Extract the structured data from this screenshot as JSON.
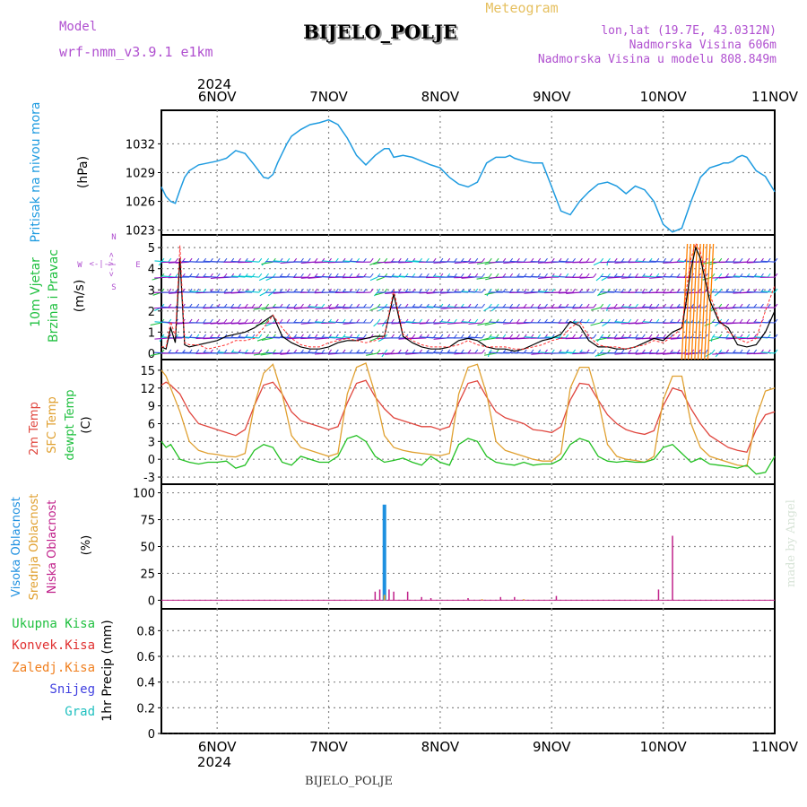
{
  "header": {
    "model_label": "Model",
    "model_name": "wrf-nmm_v3.9.1 e1km",
    "title": "BIJELO_POLJE",
    "subtitle": "Meteogram",
    "lonlat": "lon,lat (19.7E, 43.0312N)",
    "altitude": "Nadmorska Visina 606m",
    "model_altitude": "Nadmorska Visina u modelu 808.849m",
    "watermark": "made by Angel",
    "footer": "BIJELO_POLJE"
  },
  "colors": {
    "pressure": "#1e9be0",
    "temp2m": "#e0473f",
    "sfc": "#e0a030",
    "dew": "#22c022",
    "high_cloud": "#1e90e0",
    "mid_cloud": "#e0a030",
    "low_cloud": "#c0208a",
    "wind_speed": "#000000",
    "gust": "#ff3030",
    "barb_colors": [
      "#9010c0",
      "#3050e0",
      "#00c8d0",
      "#20c040",
      "#ff8000"
    ],
    "legend_total": "#20c040",
    "legend_conv": "#e03030",
    "legend_frozen": "#f08020",
    "legend_snow": "#4040e0",
    "legend_graupel": "#20c0c0",
    "purple_text": "#b050d0"
  },
  "time_axis": {
    "year": "2024",
    "days": [
      "6NOV",
      "7NOV",
      "8NOV",
      "9NOV",
      "10NOV",
      "11NOV"
    ],
    "start_hour": 12,
    "end_hour": 144
  },
  "panels": {
    "pressure": {
      "labels": [
        "Pritisak na nivou mora",
        "(hPa)"
      ],
      "ticks": [
        "1023",
        "1026",
        "1029",
        "1032"
      ]
    },
    "wind": {
      "labels": [
        "10m Vjetar",
        "Brzina i Pravac",
        "(m/s)"
      ],
      "ticks": [
        "0",
        "1",
        "2",
        "3",
        "4",
        "5"
      ],
      "compass": {
        "n": "N",
        "s": "S",
        "w": "W",
        "e": "E",
        "arrow_n": "<-|->",
        "arrow_s": "<-|->"
      }
    },
    "temp": {
      "labels": [
        "2m Temp",
        "SFC Temp",
        "dewpt Temp",
        "(C)"
      ],
      "ticks": [
        "-3",
        "0",
        "3",
        "6",
        "9",
        "12",
        "15"
      ]
    },
    "cloud": {
      "labels": [
        "Visoka Oblacnost",
        "Srednja Oblacnost",
        "Niska Oblacnost",
        "(%)"
      ],
      "ticks": [
        "0",
        "25",
        "50",
        "75",
        "100"
      ]
    },
    "precip": {
      "legend": [
        "Ukupna Kisa",
        "Konvek.Kisa",
        "Zaledj.Kisa",
        "Snijeg",
        "Grad"
      ],
      "ylabel": "1hr Precip (mm)",
      "ticks": [
        "0",
        "0.2",
        "0.4",
        "0.6",
        "0.8"
      ]
    }
  },
  "chart_data": [
    {
      "type": "line",
      "name": "pressure",
      "x_hours": [
        12,
        13,
        14,
        15,
        16,
        17,
        18,
        20,
        22,
        24,
        26,
        28,
        30,
        32,
        34,
        35,
        36,
        37,
        38,
        39,
        40,
        42,
        44,
        46,
        48,
        50,
        52,
        54,
        56,
        58,
        60,
        61,
        62,
        64,
        66,
        68,
        70,
        72,
        74,
        76,
        78,
        80,
        82,
        84,
        86,
        87,
        88,
        90,
        92,
        94,
        96,
        98,
        100,
        102,
        104,
        106,
        108,
        110,
        112,
        114,
        116,
        118,
        120,
        122,
        124,
        126,
        128,
        130,
        132,
        133,
        134,
        135,
        136,
        137,
        138,
        140,
        142,
        144
      ],
      "values": [
        1027.5,
        1026.5,
        1026.0,
        1025.8,
        1027.2,
        1028.5,
        1029.2,
        1029.8,
        1030.0,
        1030.2,
        1030.5,
        1031.3,
        1031.0,
        1029.8,
        1028.5,
        1028.4,
        1028.8,
        1030.0,
        1031.0,
        1032.0,
        1032.8,
        1033.5,
        1034.0,
        1034.2,
        1034.5,
        1034.0,
        1032.6,
        1030.8,
        1029.8,
        1030.8,
        1031.5,
        1031.5,
        1030.6,
        1030.8,
        1030.6,
        1030.2,
        1029.8,
        1029.5,
        1028.5,
        1027.8,
        1027.5,
        1028.0,
        1030.0,
        1030.6,
        1030.6,
        1030.8,
        1030.5,
        1030.2,
        1030.0,
        1030.0,
        1027.5,
        1025.0,
        1024.6,
        1026.0,
        1027.0,
        1027.8,
        1028.0,
        1027.6,
        1026.8,
        1027.6,
        1027.2,
        1026.0,
        1023.6,
        1022.8,
        1023.2,
        1026.0,
        1028.5,
        1029.5,
        1029.8,
        1030.0,
        1030.0,
        1030.2,
        1030.6,
        1030.8,
        1030.6,
        1029.2,
        1028.6,
        1027.0
      ],
      "ylim": [
        1022.5,
        1035.5
      ],
      "ylabel": "(hPa)"
    },
    {
      "type": "line",
      "name": "wind_speed",
      "x_hours": [
        12,
        13,
        14,
        15,
        16,
        17,
        18,
        20,
        22,
        24,
        26,
        28,
        30,
        32,
        34,
        36,
        38,
        40,
        42,
        44,
        46,
        48,
        50,
        52,
        54,
        56,
        58,
        60,
        62,
        64,
        66,
        68,
        70,
        72,
        74,
        76,
        78,
        80,
        82,
        84,
        86,
        88,
        90,
        92,
        94,
        96,
        98,
        100,
        102,
        104,
        106,
        108,
        110,
        112,
        114,
        116,
        118,
        120,
        122,
        124,
        125,
        126,
        127,
        128,
        129,
        130,
        132,
        134,
        136,
        138,
        140,
        142,
        144
      ],
      "values": [
        0.3,
        0.2,
        1.2,
        0.5,
        4.5,
        0.4,
        0.3,
        0.4,
        0.5,
        0.6,
        0.8,
        0.9,
        1.0,
        1.2,
        1.5,
        1.8,
        0.8,
        0.5,
        0.3,
        0.2,
        0.2,
        0.3,
        0.5,
        0.6,
        0.6,
        0.7,
        0.8,
        0.8,
        2.8,
        0.8,
        0.5,
        0.3,
        0.2,
        0.2,
        0.3,
        0.6,
        0.7,
        0.6,
        0.3,
        0.2,
        0.2,
        0.1,
        0.2,
        0.4,
        0.6,
        0.7,
        0.9,
        1.5,
        1.3,
        0.6,
        0.3,
        0.3,
        0.2,
        0.2,
        0.3,
        0.5,
        0.7,
        0.6,
        1.0,
        1.2,
        2.5,
        4.0,
        5.0,
        4.5,
        3.5,
        2.5,
        1.5,
        1.2,
        0.4,
        0.3,
        0.4,
        1.0,
        2.0
      ],
      "ylim": [
        -0.3,
        5.6
      ],
      "ylabel": "(m/s)"
    },
    {
      "type": "line",
      "name": "gust",
      "x_hours": [
        12,
        13,
        14,
        15,
        16,
        17,
        18,
        20,
        22,
        24,
        26,
        28,
        30,
        32,
        34,
        36,
        38,
        40,
        42,
        44,
        46,
        48,
        50,
        52,
        54,
        56,
        58,
        60,
        62,
        64,
        66,
        68,
        70,
        72,
        74,
        76,
        78,
        80,
        82,
        84,
        86,
        88,
        90,
        92,
        94,
        96,
        98,
        100,
        102,
        104,
        106,
        108,
        110,
        112,
        114,
        116,
        118,
        120,
        122,
        124,
        125,
        126,
        127,
        128,
        129,
        130,
        132,
        134,
        136,
        138,
        140,
        142,
        144
      ],
      "values": [
        0.3,
        0.3,
        1.5,
        0.8,
        5.1,
        0.5,
        0.4,
        0.4,
        0.2,
        0.3,
        0.4,
        0.6,
        0.6,
        0.7,
        1.2,
        1.8,
        1.2,
        0.7,
        0.4,
        0.3,
        0.3,
        0.5,
        0.6,
        0.7,
        0.6,
        0.5,
        0.6,
        0.8,
        3.0,
        0.9,
        0.6,
        0.4,
        0.3,
        0.3,
        0.3,
        0.4,
        0.6,
        0.4,
        0.3,
        0.3,
        0.3,
        0.2,
        0.2,
        0.3,
        0.4,
        0.6,
        0.7,
        1.2,
        1.5,
        0.8,
        0.4,
        0.3,
        0.3,
        0.2,
        0.3,
        0.4,
        0.6,
        0.5,
        0.8,
        1.2,
        3.0,
        4.5,
        5.2,
        4.8,
        3.8,
        2.8,
        1.6,
        1.0,
        0.7,
        0.5,
        0.7,
        2.0,
        3.2
      ],
      "ylim": [
        -0.3,
        5.6
      ]
    },
    {
      "type": "line",
      "name": "temperature",
      "x_hours": [
        12,
        13,
        14,
        16,
        18,
        20,
        22,
        24,
        26,
        28,
        30,
        32,
        34,
        36,
        38,
        40,
        42,
        44,
        46,
        48,
        50,
        52,
        54,
        56,
        58,
        60,
        62,
        64,
        66,
        68,
        70,
        72,
        74,
        76,
        78,
        80,
        82,
        84,
        86,
        88,
        90,
        92,
        94,
        96,
        98,
        100,
        102,
        104,
        106,
        108,
        110,
        112,
        114,
        116,
        118,
        120,
        122,
        124,
        126,
        128,
        130,
        132,
        134,
        136,
        138,
        140,
        142,
        144
      ],
      "series": [
        {
          "name": "2m Temp",
          "values": [
            12.5,
            13.0,
            12.5,
            11.0,
            8.0,
            6.0,
            5.5,
            5.0,
            4.5,
            4.0,
            5.0,
            9.0,
            12.5,
            13.0,
            11.0,
            8.0,
            6.5,
            6.0,
            5.5,
            5.0,
            5.5,
            9.5,
            12.8,
            13.3,
            10.5,
            8.5,
            7.0,
            6.5,
            6.0,
            5.5,
            5.5,
            5.0,
            5.5,
            9.5,
            12.8,
            13.2,
            10.5,
            8.0,
            7.0,
            6.5,
            6.0,
            5.0,
            4.8,
            4.5,
            5.5,
            10.0,
            12.8,
            12.6,
            10.0,
            7.5,
            6.0,
            5.0,
            4.5,
            4.2,
            4.8,
            9.0,
            12.0,
            11.5,
            8.5,
            6.0,
            4.0,
            3.0,
            2.0,
            1.5,
            1.2,
            5.0,
            7.5,
            8.0
          ]
        },
        {
          "name": "SFC Temp",
          "values": [
            15.0,
            14.0,
            12.0,
            8.0,
            3.0,
            1.5,
            1.0,
            0.8,
            0.5,
            0.4,
            1.0,
            9.0,
            14.5,
            16.0,
            11.0,
            4.0,
            2.0,
            1.5,
            1.0,
            0.5,
            1.0,
            11.0,
            15.5,
            16.2,
            11.0,
            4.0,
            2.0,
            1.5,
            1.2,
            1.0,
            0.8,
            0.6,
            1.0,
            11.0,
            15.5,
            16.0,
            11.0,
            3.0,
            1.5,
            1.0,
            0.5,
            0.0,
            -0.3,
            -0.3,
            1.0,
            12.0,
            15.5,
            15.5,
            10.0,
            2.5,
            0.5,
            0.0,
            -0.2,
            -0.5,
            0.5,
            10.0,
            14.0,
            14.0,
            6.0,
            2.0,
            0.5,
            0.0,
            -0.5,
            -1.0,
            -1.2,
            7.0,
            11.5,
            12.0
          ]
        },
        {
          "name": "dewpt Temp",
          "values": [
            3.0,
            2.0,
            2.5,
            0.0,
            -0.5,
            -0.8,
            -0.5,
            -0.5,
            -0.3,
            -1.5,
            -1.0,
            1.5,
            2.5,
            2.0,
            -0.5,
            -1.0,
            0.5,
            0.0,
            -0.5,
            -0.5,
            0.5,
            3.5,
            4.0,
            3.0,
            0.5,
            -0.5,
            -0.2,
            0.2,
            -0.5,
            -1.0,
            0.5,
            -0.5,
            -1.0,
            2.5,
            3.5,
            3.0,
            0.5,
            -0.5,
            -0.8,
            -1.0,
            -0.5,
            -1.0,
            -0.8,
            -0.8,
            0.0,
            2.5,
            3.5,
            3.0,
            0.5,
            -0.3,
            -0.5,
            -0.3,
            -0.5,
            -0.5,
            0.0,
            2.0,
            2.5,
            1.0,
            -0.5,
            0.2,
            -0.8,
            -1.0,
            -1.2,
            -1.5,
            -1.0,
            -2.5,
            -2.2,
            0.5
          ]
        }
      ],
      "ylim": [
        -4.2,
        16.8
      ],
      "ylabel": "(C)"
    },
    {
      "type": "bar",
      "name": "cloud",
      "series": [
        {
          "name": "Visoka Oblacnost",
          "x_hours": [
            60
          ],
          "values": [
            89
          ]
        },
        {
          "name": "Srednja Oblacnost",
          "x_hours": [
            60,
            81,
            90
          ],
          "values": [
            5,
            1,
            1
          ]
        },
        {
          "name": "Niska Oblacnost",
          "x_hours": [
            58,
            59,
            61,
            62,
            65,
            68,
            70,
            78,
            85,
            88,
            97,
            119,
            122
          ],
          "values": [
            8,
            10,
            10,
            8,
            8,
            3,
            2,
            2,
            3,
            3,
            4,
            10,
            60
          ]
        }
      ],
      "ylim": [
        -8,
        108
      ],
      "ylabel": "(%)"
    },
    {
      "type": "bar",
      "name": "precip",
      "series": [
        {
          "name": "Ukupna Kisa",
          "x_hours": [],
          "values": []
        }
      ],
      "ylim": [
        0,
        0.97
      ],
      "ylabel": "1hr Precip (mm)"
    }
  ]
}
